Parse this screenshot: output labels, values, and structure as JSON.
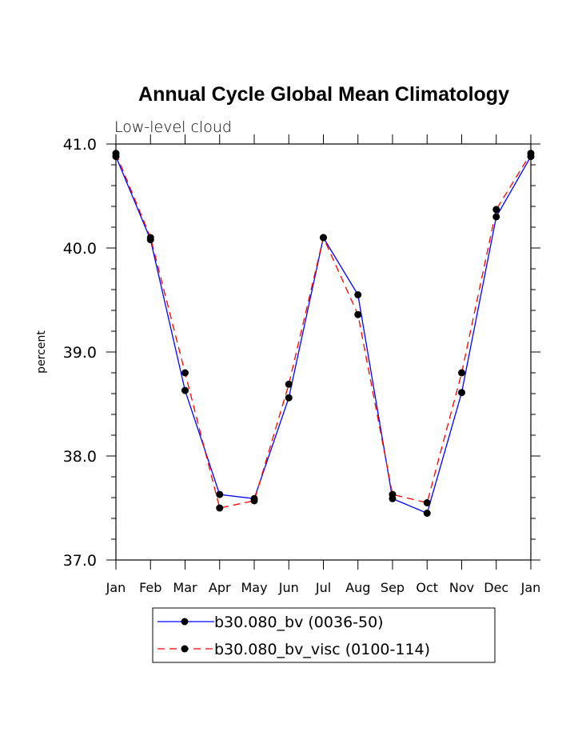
{
  "chart_data": {
    "type": "line",
    "title": "Annual Cycle Global Mean Climatology",
    "subtitle": "Low-level cloud",
    "xlabel": "",
    "ylabel": "percent",
    "ylim": [
      37.0,
      41.0
    ],
    "yticks": [
      "37.0",
      "38.0",
      "39.0",
      "40.0",
      "41.0"
    ],
    "categories": [
      "Jan",
      "Feb",
      "Mar",
      "Apr",
      "May",
      "Jun",
      "Jul",
      "Aug",
      "Sep",
      "Oct",
      "Nov",
      "Dec",
      "Jan"
    ],
    "series": [
      {
        "name": "b30.080_bv (0036-50)",
        "color": "#0000ff",
        "dash": "solid",
        "values": [
          40.88,
          40.08,
          38.63,
          37.63,
          37.59,
          38.56,
          40.1,
          39.55,
          37.59,
          37.45,
          38.61,
          40.3,
          40.88
        ]
      },
      {
        "name": "b30.080_bv_visc (0100-114)",
        "color": "#ff0000",
        "dash": "dashed",
        "values": [
          40.91,
          40.1,
          38.8,
          37.5,
          37.57,
          38.69,
          40.1,
          39.36,
          37.63,
          37.55,
          38.8,
          40.37,
          40.91
        ]
      }
    ],
    "legend_position": "bottom-center"
  }
}
